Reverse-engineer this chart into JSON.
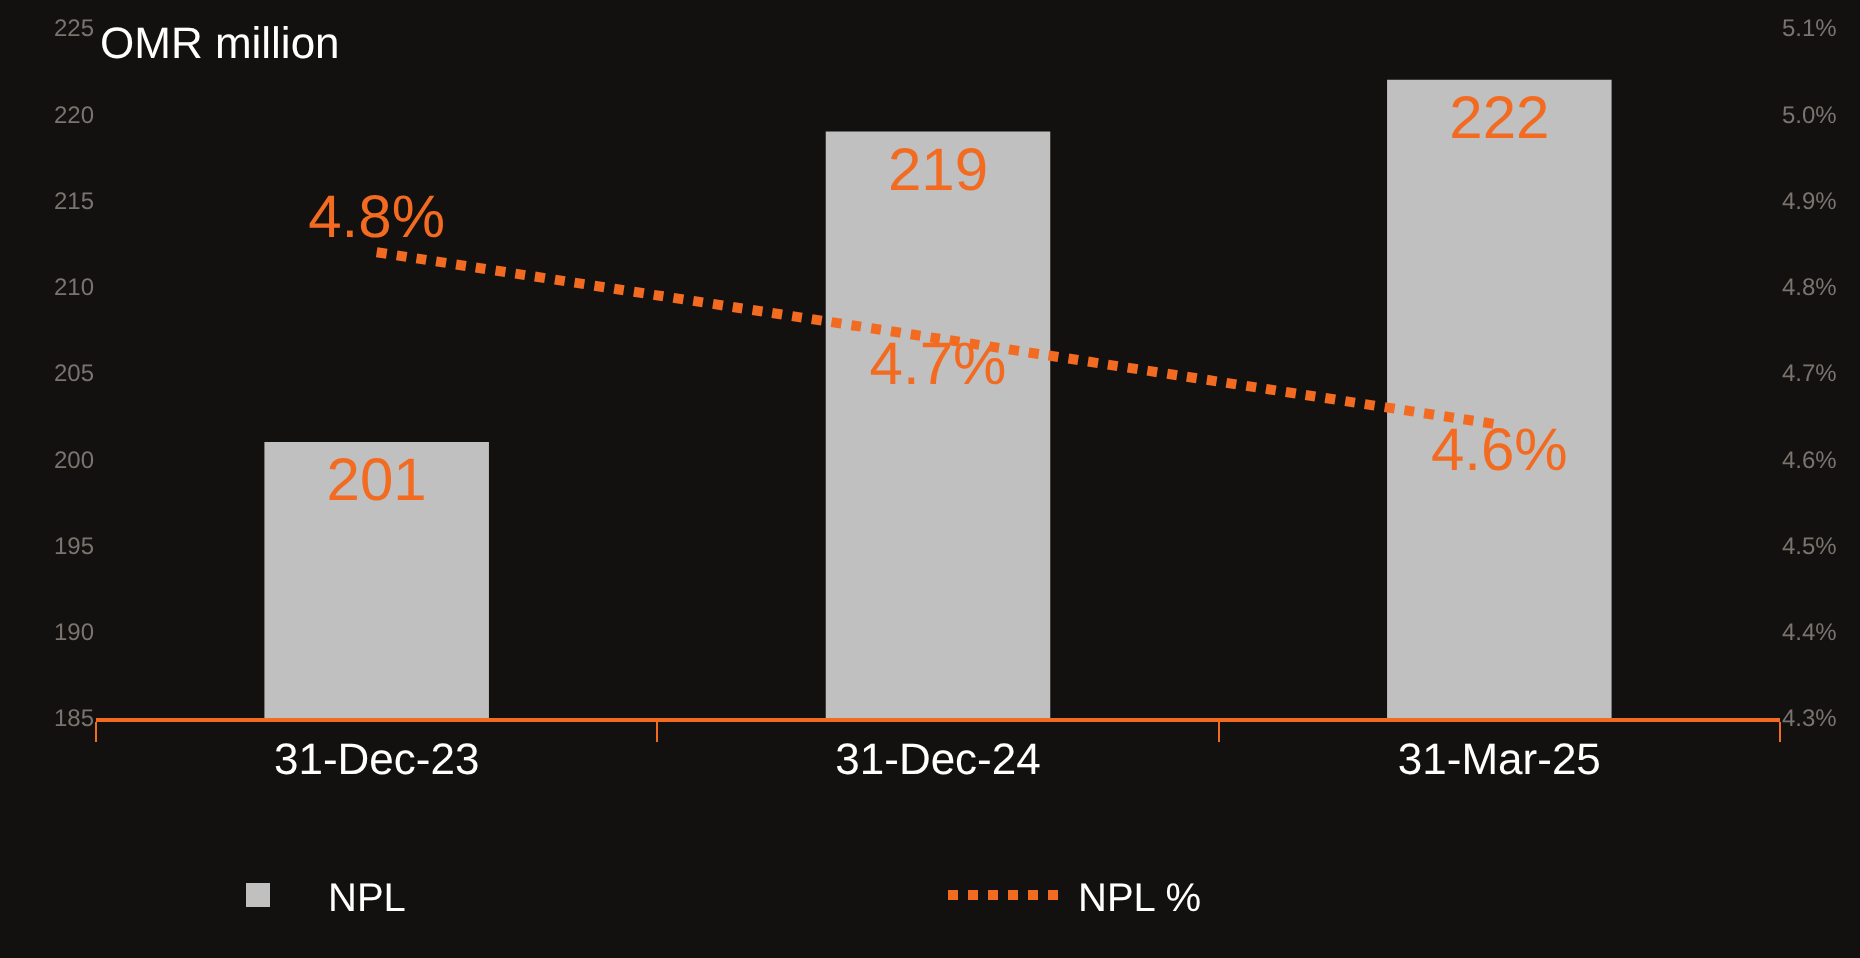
{
  "chart_data": {
    "type": "bar",
    "ylabel": "OMR million",
    "categories": [
      "31-Dec-23",
      "31-Dec-24",
      "31-Mar-25"
    ],
    "series": [
      {
        "name": "NPL",
        "color": "#c0c0c0",
        "values": [
          201,
          219,
          222
        ],
        "value_labels": [
          "201",
          "219",
          "222"
        ]
      },
      {
        "name": "NPL %",
        "type": "line",
        "axis": "y2",
        "color": "#f26b21",
        "line_style": "dotted",
        "marker": "none",
        "values": [
          4.84,
          4.74,
          4.64
        ],
        "value_labels": [
          "4.8%",
          "4.7%",
          "4.6%"
        ]
      }
    ],
    "ylim": [
      185,
      225
    ],
    "yticks": [
      185,
      190,
      195,
      200,
      205,
      210,
      215,
      220,
      225
    ],
    "y2lim": [
      4.3,
      5.1
    ],
    "y2ticks": [
      {
        "value": 4.3,
        "label": "4.3%"
      },
      {
        "value": 4.4,
        "label": "4.4%"
      },
      {
        "value": 4.5,
        "label": "4.5%"
      },
      {
        "value": 4.6,
        "label": "4.6%"
      },
      {
        "value": 4.7,
        "label": "4.7%"
      },
      {
        "value": 4.8,
        "label": "4.8%"
      },
      {
        "value": 4.9,
        "label": "4.9%"
      },
      {
        "value": 5.0,
        "label": "5.0%"
      },
      {
        "value": 5.1,
        "label": "5.1%"
      }
    ],
    "grid": false,
    "legend": "bottom"
  }
}
